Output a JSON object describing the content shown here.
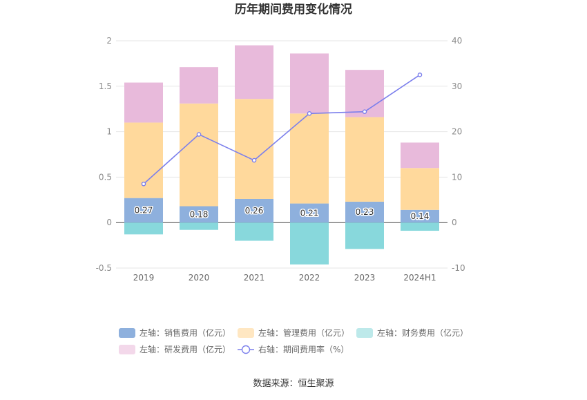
{
  "chart_data": {
    "type": "bar",
    "title": "历年期间费用变化情况",
    "source": "数据来源：恒生聚源",
    "categories": [
      "2019",
      "2020",
      "2021",
      "2022",
      "2023",
      "2024H1"
    ],
    "stacked": true,
    "left_axis": {
      "min": -0.5,
      "max": 2,
      "ticks": [
        -0.5,
        0,
        0.5,
        1,
        1.5,
        2
      ],
      "tick_labels": [
        "-0.5",
        "0",
        "0.5",
        "1",
        "1.5",
        "2"
      ]
    },
    "right_axis": {
      "min": -10,
      "max": 40,
      "ticks": [
        -10,
        0,
        10,
        20,
        30,
        40
      ],
      "tick_labels": [
        "-10",
        "0",
        "10",
        "20",
        "30",
        "40"
      ]
    },
    "grid": true,
    "legend_position": "bottom",
    "series": [
      {
        "name": "左轴：销售费用（亿元）",
        "axis": "left",
        "kind": "bar",
        "color": "#8eb0dd",
        "legend_color": "#8eb0dd",
        "values": [
          0.27,
          0.18,
          0.26,
          0.21,
          0.23,
          0.14
        ],
        "labels": [
          "0.27",
          "0.18",
          "0.26",
          "0.21",
          "0.23",
          "0.14"
        ]
      },
      {
        "name": "左轴：管理费用（亿元）",
        "axis": "left",
        "kind": "bar",
        "color": "#ffd99c",
        "legend_color": "#ffe7c2",
        "values": [
          0.83,
          1.13,
          1.1,
          0.99,
          0.93,
          0.46
        ]
      },
      {
        "name": "左轴：财务费用（亿元）",
        "axis": "left",
        "kind": "bar",
        "color": "#88d8dc",
        "legend_color": "#bde9ea",
        "values": [
          -0.13,
          -0.08,
          -0.2,
          -0.46,
          -0.29,
          -0.09
        ]
      },
      {
        "name": "左轴：研发费用（亿元）",
        "axis": "left",
        "kind": "bar",
        "color": "#e8badb",
        "legend_color": "#f3d8ea",
        "values": [
          0.44,
          0.4,
          0.59,
          0.66,
          0.52,
          0.28
        ]
      },
      {
        "name": "右轴：期间费用率（%）",
        "axis": "right",
        "kind": "line",
        "color": "#7b7fec",
        "values": [
          8.5,
          19.4,
          13.7,
          24.0,
          24.4,
          32.5
        ]
      }
    ]
  }
}
